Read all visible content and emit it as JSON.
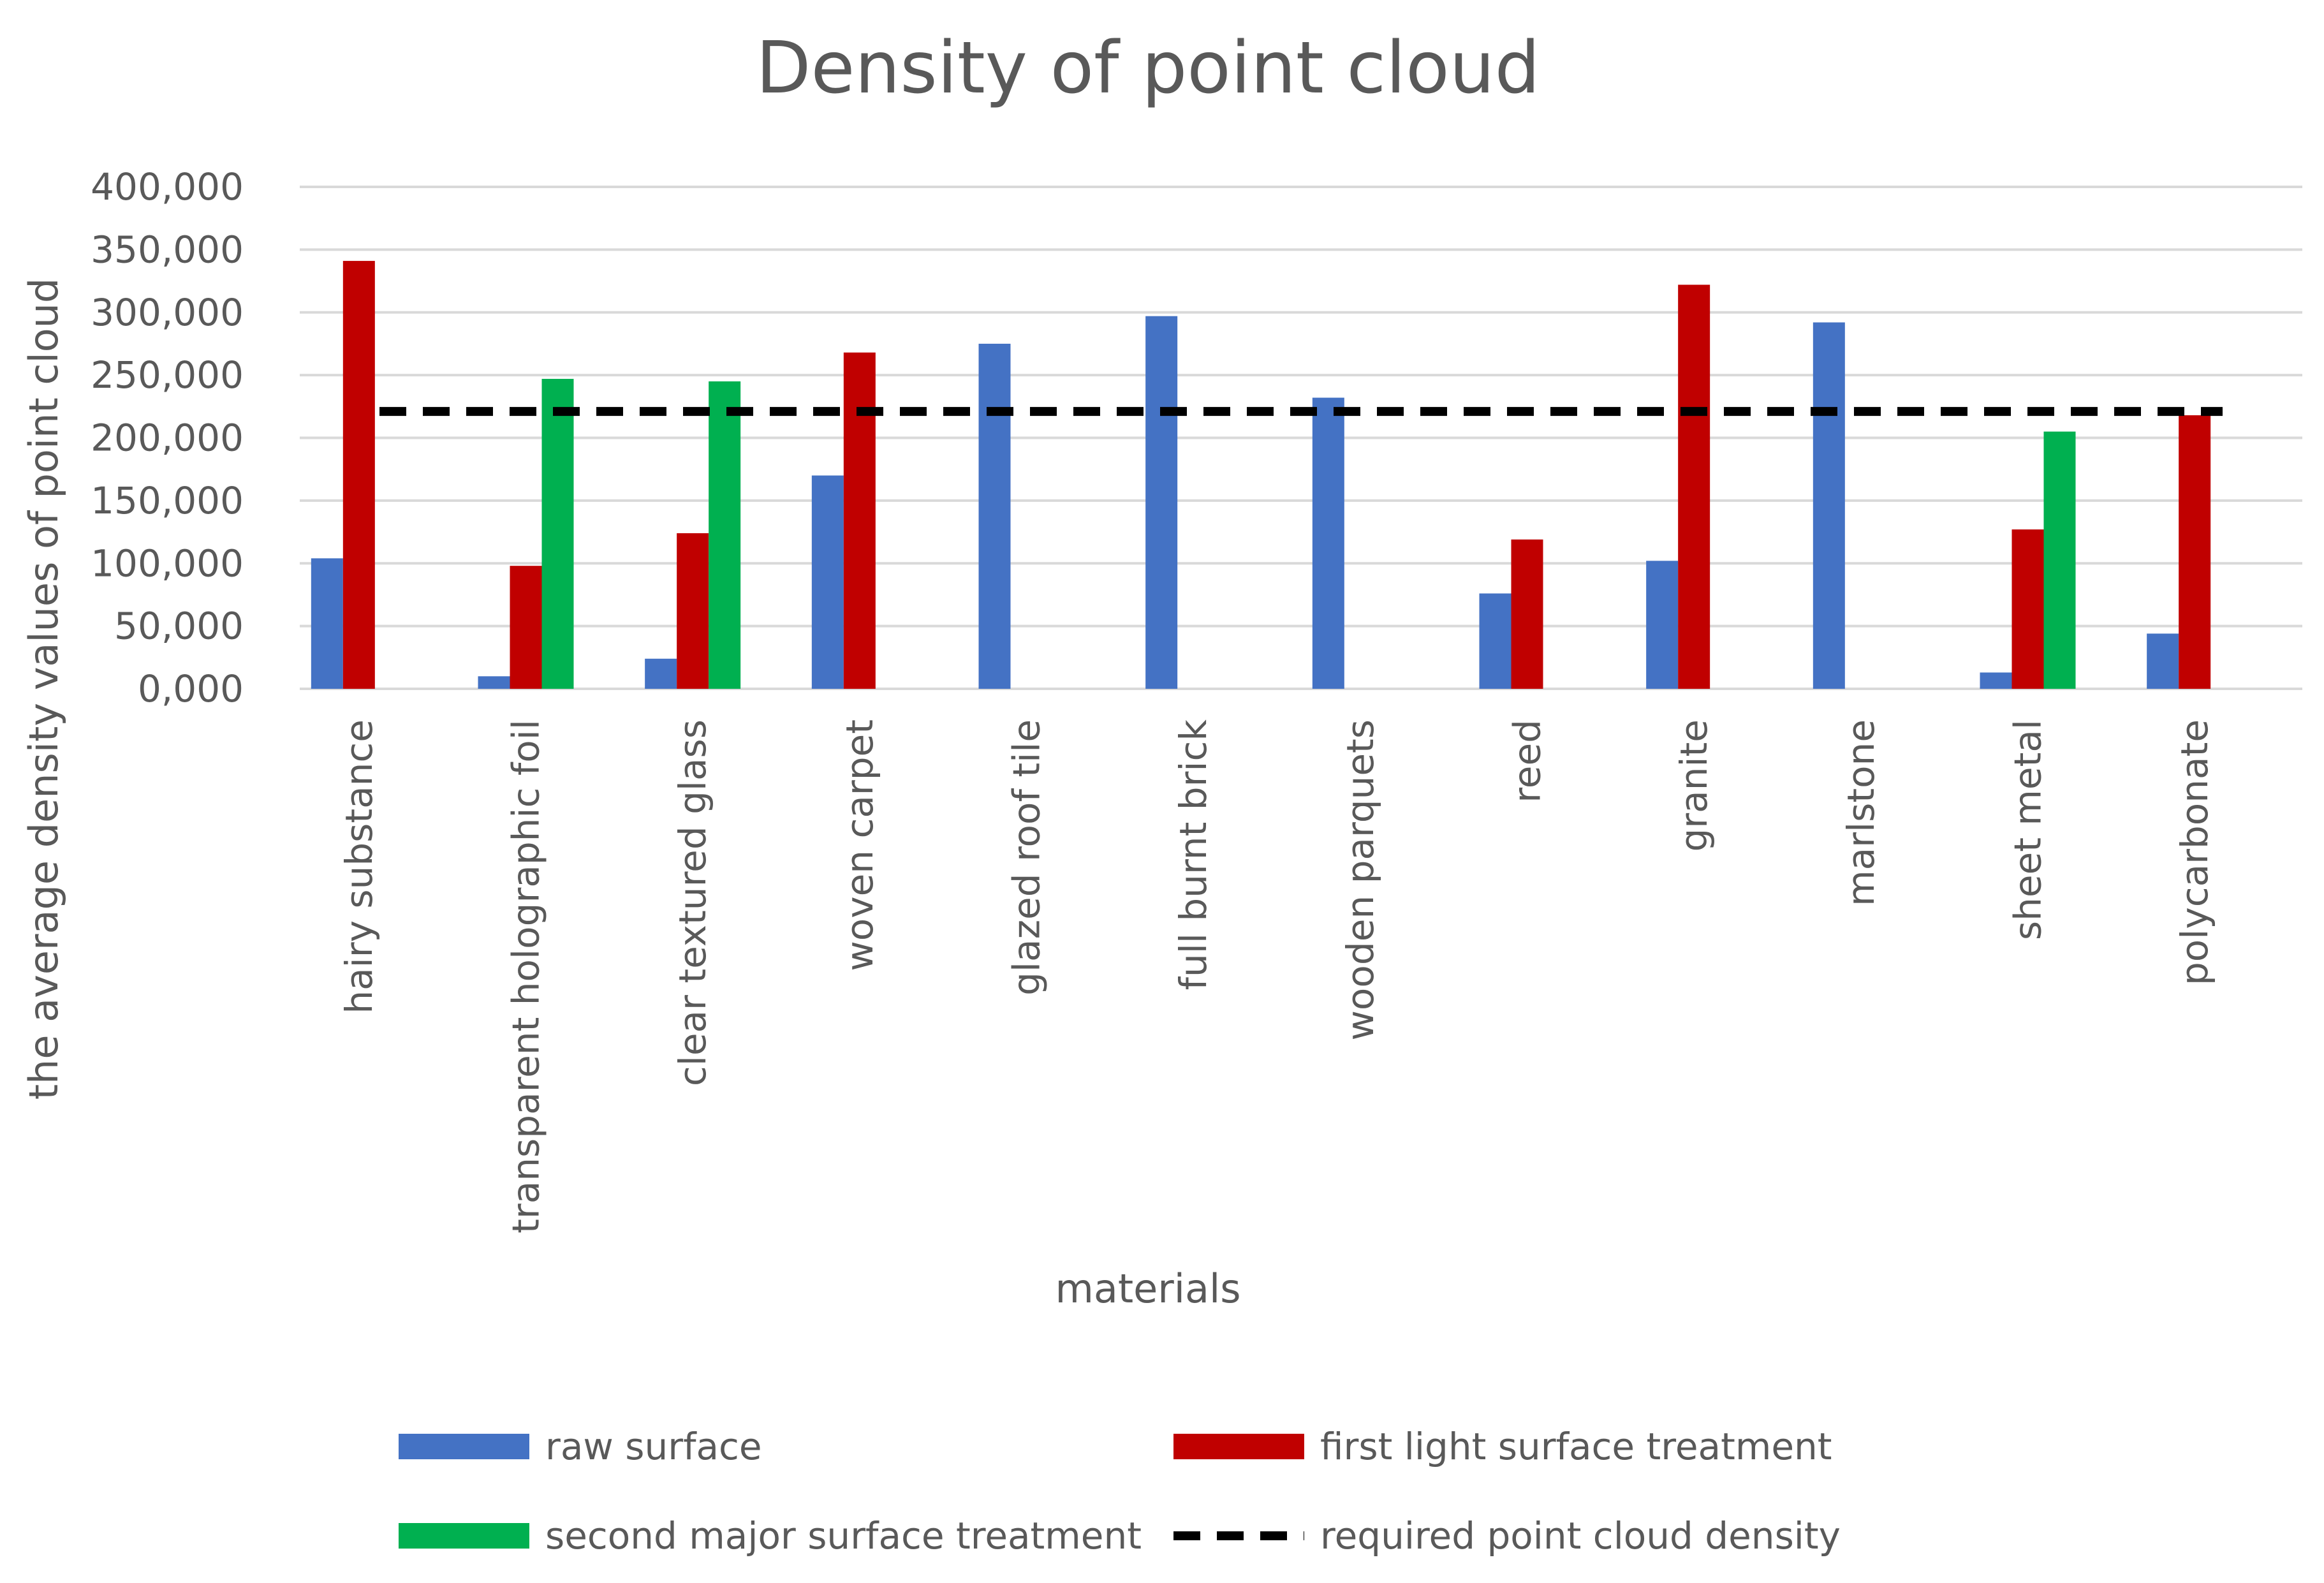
{
  "chart_data": {
    "type": "bar",
    "title": "Density of point cloud",
    "xlabel": "materials",
    "ylabel": "the average density values of point cloud",
    "ylim": [
      0,
      400
    ],
    "yticks": [
      "0,000",
      "50,000",
      "100,000",
      "150,000",
      "200,000",
      "250,000",
      "300,000",
      "350,000",
      "400,000"
    ],
    "grid": true,
    "legend_position": "bottom",
    "categories": [
      "hairy substance",
      "transparent holographic foil",
      "clear textured glass",
      "woven carpet",
      "glazed roof tile",
      "full burnt brick",
      "wooden parquets",
      "reed",
      "granite",
      "marlstone",
      "sheet metal",
      "polycarbonate"
    ],
    "series": [
      {
        "name": "raw surface",
        "color": "#4472c4",
        "values": [
          104,
          10,
          24,
          170,
          275,
          297,
          232,
          76,
          102,
          292,
          13,
          44
        ]
      },
      {
        "name": "first light surface treatment",
        "color": "#c00000",
        "values": [
          341,
          98,
          124,
          268,
          null,
          null,
          null,
          119,
          322,
          null,
          127,
          218
        ]
      },
      {
        "name": "second major surface treatment",
        "color": "#00b050",
        "values": [
          null,
          247,
          245,
          null,
          null,
          null,
          null,
          null,
          null,
          null,
          205,
          null
        ]
      }
    ],
    "reference_line": {
      "name": "required point cloud density",
      "color": "#000000",
      "style": "dashed",
      "value": 221
    }
  }
}
